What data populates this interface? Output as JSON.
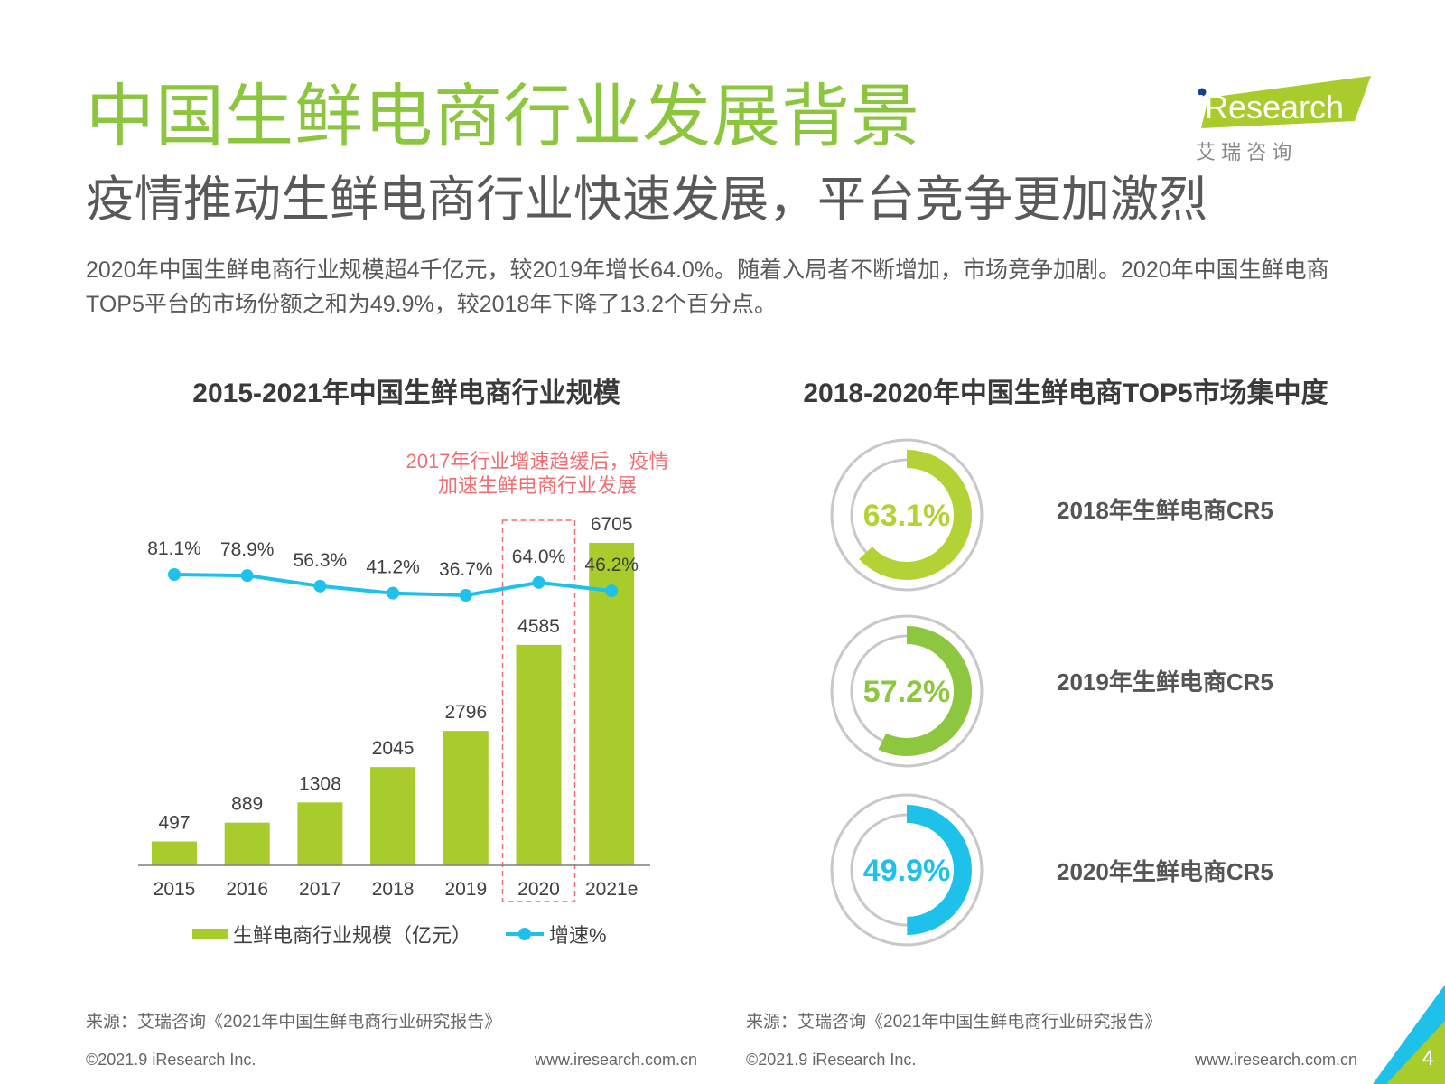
{
  "slide": {
    "title": "中国生鲜电商行业发展背景",
    "subtitle": "疫情推动生鲜电商行业快速发展，平台竞争更加激烈",
    "intro": "2020年中国生鲜电商行业规模超4千亿元，较2019年增长64.0%。随着入局者不断增加，市场竞争加剧。2020年中国生鲜电商TOP5平台的市场份额之和为49.9%，较2018年下降了13.2个百分点。",
    "page_number": "4"
  },
  "logo": {
    "brand": "iResearch",
    "chinese": "艾 瑞 咨 询"
  },
  "colors": {
    "green_title": "#8cc63f",
    "bar_green": "#a8cc2c",
    "line_blue": "#1ec1ea",
    "annotation_red": "#ee6e73"
  },
  "chart_data": [
    {
      "type": "bar",
      "title": "2015-2021年中国生鲜电商行业规模",
      "categories": [
        "2015",
        "2016",
        "2017",
        "2018",
        "2019",
        "2020",
        "2021e"
      ],
      "series": [
        {
          "name": "生鲜电商行业规模（亿元）",
          "type": "bar",
          "values": [
            497,
            889,
            1308,
            2045,
            2796,
            4585,
            6705
          ]
        },
        {
          "name": "增速%",
          "type": "line",
          "values": [
            81.1,
            78.9,
            56.3,
            41.2,
            36.7,
            64.0,
            46.2
          ],
          "labels": [
            "81.1%",
            "78.9%",
            "56.3%",
            "41.2%",
            "36.7%",
            "64.0%",
            "46.2%"
          ]
        }
      ],
      "annotation": {
        "text_line1": "2017年行业增速趋缓后，疫情",
        "text_line2": "加速生鲜电商行业发展",
        "highlight_category": "2020"
      },
      "legend": {
        "position": "bottom",
        "items": [
          "生鲜电商行业规模（亿元）",
          "增速%"
        ]
      }
    },
    {
      "type": "pie",
      "title": "2018-2020年中国生鲜电商TOP5市场集中度",
      "items": [
        {
          "label": "2018年生鲜电商CR5",
          "value": 63.1,
          "display": "63.1%",
          "color": "#b2d235"
        },
        {
          "label": "2019年生鲜电商CR5",
          "value": 57.2,
          "display": "57.2%",
          "color": "#8dc63f"
        },
        {
          "label": "2020年生鲜电商CR5",
          "value": 49.9,
          "display": "49.9%",
          "color": "#1ec1ea"
        }
      ]
    }
  ],
  "footer": {
    "source_left": "来源：艾瑞咨询《2021年中国生鲜电商行业研究报告》",
    "source_right": "来源：艾瑞咨询《2021年中国生鲜电商行业研究报告》",
    "copyright_left": "©2021.9 iResearch Inc.",
    "url_left": "www.iresearch.com.cn",
    "copyright_right": "©2021.9 iResearch Inc.",
    "url_right": "www.iresearch.com.cn"
  }
}
